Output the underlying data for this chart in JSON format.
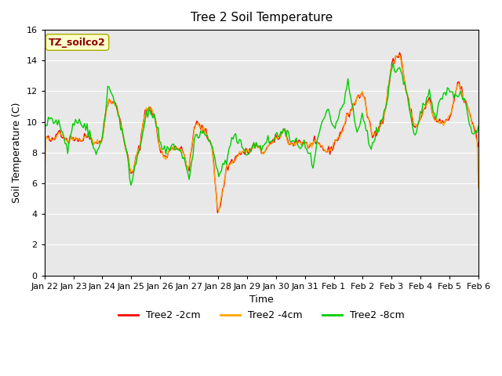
{
  "title": "Tree 2 Soil Temperature",
  "ylabel": "Soil Temperature (C)",
  "xlabel": "Time",
  "annotation": "TZ_soilco2",
  "annotation_color": "#8B0000",
  "annotation_bg": "#FFFFCC",
  "background_color": "#E8E8E8",
  "ylim": [
    0,
    16
  ],
  "yticks": [
    0,
    2,
    4,
    6,
    8,
    10,
    12,
    14,
    16
  ],
  "line_colors": {
    "2cm": "#FF0000",
    "4cm": "#FFA500",
    "8cm": "#00CC00"
  },
  "legend_labels": [
    "Tree2 -2cm",
    "Tree2 -4cm",
    "Tree2 -8cm"
  ],
  "xtick_labels": [
    "Jan 22",
    "Jan 23",
    "Jan 24",
    "Jan 25",
    "Jan 26",
    "Jan 27",
    "Jan 28",
    "Jan 29",
    "Jan 30",
    "Jan 31",
    "Feb 1",
    "Feb 2",
    "Feb 3",
    "Feb 4",
    "Feb 5",
    "Feb 6"
  ],
  "xtick_positions": [
    0,
    1,
    2,
    3,
    4,
    5,
    6,
    7,
    8,
    9,
    10,
    11,
    12,
    13,
    14,
    15
  ],
  "n_points": 337
}
